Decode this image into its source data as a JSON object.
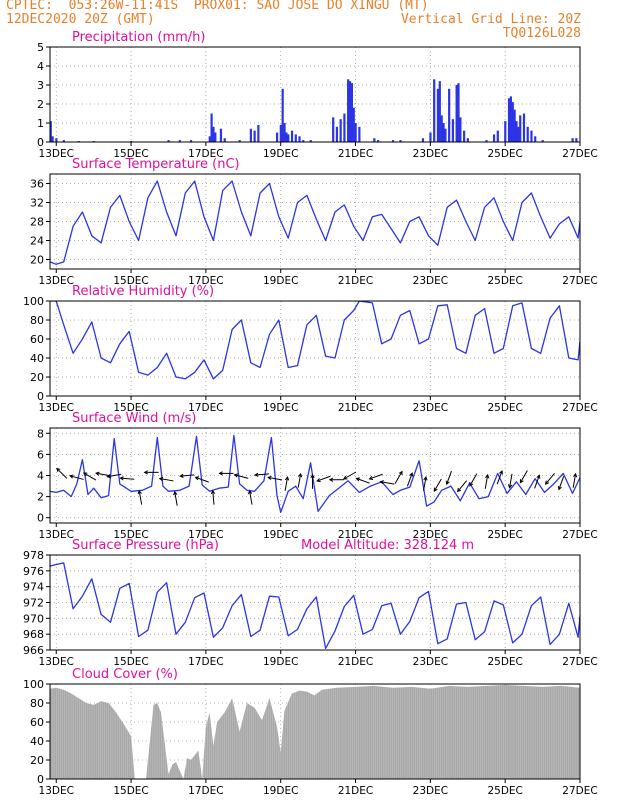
{
  "header": {
    "line1": "CPTEC:  053:26W-11:41S  PROX01: SAO JOSE DO XINGU (MT)",
    "date": "12DEC2020 20Z (GMT)",
    "grid_note": "Vertical Grid Line: 20Z",
    "code": "TQ0126L028"
  },
  "colors": {
    "header": "#e8802a",
    "panel_title": "#e0109a",
    "line": "#2b35e6",
    "bar": "#2b35e6",
    "cloud": "#a8a8a8",
    "grid": "#9a9a9a"
  },
  "x_ticks": [
    "13DEC",
    "15DEC",
    "17DEC",
    "19DEC",
    "21DEC",
    "23DEC",
    "25DEC",
    "27DEC"
  ],
  "chart_data": [
    {
      "type": "bar",
      "title": "Precipitation (mm/h)",
      "yticks": [
        "0",
        "1",
        "2",
        "3",
        "4",
        "5"
      ],
      "ylim": [
        0,
        5
      ],
      "grid": true,
      "x_range_days": [
        12.833,
        27.0
      ],
      "x": [
        12.85,
        12.9,
        13.0,
        13.2,
        13.6,
        14.0,
        15.0,
        16.0,
        16.3,
        16.6,
        17.1,
        17.15,
        17.2,
        17.25,
        17.4,
        17.5,
        17.9,
        18.2,
        18.3,
        18.4,
        18.9,
        19.0,
        19.05,
        19.1,
        19.15,
        19.2,
        19.3,
        19.4,
        19.5,
        19.6,
        19.8,
        20.4,
        20.5,
        20.6,
        20.7,
        20.8,
        20.85,
        20.9,
        20.95,
        21.0,
        21.1,
        21.5,
        21.6,
        22.0,
        22.2,
        22.8,
        23.0,
        23.1,
        23.2,
        23.25,
        23.3,
        23.35,
        23.4,
        23.5,
        23.6,
        23.7,
        23.75,
        23.8,
        23.9,
        24.0,
        24.5,
        24.7,
        24.8,
        25.0,
        25.1,
        25.15,
        25.2,
        25.25,
        25.3,
        25.35,
        25.4,
        25.5,
        25.6,
        25.7,
        25.8,
        26.0,
        26.8,
        26.9
      ],
      "values": [
        1.1,
        0.3,
        0.2,
        0.1,
        0.05,
        0.05,
        0.05,
        0.1,
        0.1,
        0.1,
        0.3,
        1.5,
        0.8,
        0.5,
        0.7,
        0.2,
        0.1,
        0.7,
        0.6,
        0.9,
        0.5,
        0.9,
        2.8,
        1.0,
        0.5,
        0.4,
        0.6,
        0.4,
        0.3,
        0.1,
        0.1,
        1.3,
        0.8,
        1.2,
        1.5,
        3.3,
        3.2,
        3.1,
        1.8,
        1.0,
        0.8,
        0.2,
        0.1,
        0.1,
        0.1,
        0.2,
        0.5,
        3.3,
        2.8,
        3.2,
        1.4,
        1.0,
        0.7,
        2.8,
        1.2,
        3.0,
        3.1,
        1.3,
        0.6,
        0.2,
        0.1,
        0.4,
        0.6,
        1.1,
        2.3,
        2.4,
        2.1,
        1.7,
        1.1,
        0.8,
        1.4,
        1.5,
        0.8,
        0.6,
        0.3,
        0.1,
        0.2,
        0.2
      ]
    },
    {
      "type": "line",
      "title": "Surface Temperature (nC)",
      "yticks": [
        "20",
        "24",
        "28",
        "32",
        "36"
      ],
      "ylim": [
        18,
        38
      ],
      "grid": true,
      "x_range_days": [
        12.833,
        27.0
      ],
      "x": [
        12.833,
        13.0,
        13.2,
        13.45,
        13.7,
        13.95,
        14.2,
        14.45,
        14.7,
        14.95,
        15.2,
        15.45,
        15.7,
        15.95,
        16.2,
        16.45,
        16.7,
        16.95,
        17.2,
        17.45,
        17.7,
        17.95,
        18.2,
        18.45,
        18.7,
        18.95,
        19.2,
        19.45,
        19.7,
        19.95,
        20.2,
        20.45,
        20.7,
        20.95,
        21.2,
        21.45,
        21.7,
        21.95,
        22.2,
        22.45,
        22.7,
        22.95,
        23.2,
        23.45,
        23.7,
        23.95,
        24.2,
        24.45,
        24.7,
        24.95,
        25.2,
        25.45,
        25.7,
        25.95,
        26.2,
        26.45,
        26.7,
        26.95,
        27.0
      ],
      "values": [
        19.5,
        19.0,
        19.5,
        27.0,
        30.0,
        25.0,
        23.5,
        31.0,
        33.5,
        28.0,
        24.0,
        33.0,
        36.5,
        30.0,
        25.0,
        34.0,
        36.5,
        29.0,
        24.0,
        34.5,
        36.5,
        30.0,
        25.0,
        34.0,
        36.0,
        29.0,
        24.5,
        32.0,
        33.5,
        28.5,
        24.0,
        30.0,
        31.5,
        27.0,
        24.0,
        29.0,
        29.5,
        26.5,
        23.5,
        28.0,
        29.0,
        25.0,
        23.0,
        31.0,
        32.5,
        28.0,
        24.0,
        31.0,
        33.0,
        28.0,
        24.0,
        32.0,
        34.0,
        29.0,
        24.5,
        27.5,
        29.0,
        24.5,
        28.0
      ]
    },
    {
      "type": "line",
      "title": "Relative Humidity (%)",
      "yticks": [
        "0",
        "20",
        "40",
        "60",
        "80",
        "100"
      ],
      "ylim": [
        0,
        100
      ],
      "grid": true,
      "x_range_days": [
        12.833,
        27.0
      ],
      "x": [
        12.833,
        13.0,
        13.2,
        13.45,
        13.7,
        13.95,
        14.2,
        14.45,
        14.7,
        14.95,
        15.2,
        15.45,
        15.7,
        15.95,
        16.2,
        16.45,
        16.7,
        16.95,
        17.2,
        17.45,
        17.7,
        17.95,
        18.2,
        18.45,
        18.7,
        18.95,
        19.2,
        19.45,
        19.7,
        19.95,
        20.2,
        20.45,
        20.7,
        20.95,
        21.1,
        21.45,
        21.7,
        21.95,
        22.2,
        22.45,
        22.7,
        22.95,
        23.2,
        23.45,
        23.7,
        23.95,
        24.2,
        24.45,
        24.7,
        24.95,
        25.2,
        25.45,
        25.7,
        25.95,
        26.2,
        26.45,
        26.7,
        26.95,
        27.0
      ],
      "values": [
        100,
        100,
        75,
        45,
        60,
        78,
        40,
        35,
        55,
        68,
        25,
        22,
        30,
        45,
        20,
        18,
        25,
        38,
        18,
        27,
        70,
        80,
        35,
        30,
        65,
        80,
        30,
        32,
        75,
        85,
        42,
        40,
        80,
        90,
        100,
        98,
        55,
        60,
        85,
        90,
        55,
        60,
        95,
        96,
        50,
        45,
        85,
        92,
        45,
        50,
        95,
        98,
        50,
        45,
        82,
        95,
        40,
        38,
        58
      ]
    },
    {
      "type": "line",
      "title": "Surface Wind (m/s)",
      "yticks": [
        "0",
        "2",
        "4",
        "6",
        "8"
      ],
      "ylim": [
        -0.5,
        8.5
      ],
      "grid": true,
      "x_range_days": [
        12.833,
        27.0
      ],
      "x": [
        12.833,
        13.0,
        13.2,
        13.4,
        13.55,
        13.7,
        13.85,
        14.0,
        14.2,
        14.4,
        14.55,
        14.7,
        15.0,
        15.3,
        15.55,
        15.7,
        15.85,
        16.0,
        16.3,
        16.55,
        16.75,
        16.9,
        17.1,
        17.35,
        17.6,
        17.75,
        17.9,
        18.1,
        18.3,
        18.55,
        18.75,
        18.9,
        19.0,
        19.2,
        19.4,
        19.6,
        19.8,
        20.0,
        20.3,
        20.55,
        20.8,
        21.1,
        21.4,
        21.7,
        22.0,
        22.2,
        22.45,
        22.7,
        22.9,
        23.1,
        23.3,
        23.55,
        23.8,
        24.05,
        24.3,
        24.55,
        24.8,
        25.05,
        25.3,
        25.55,
        25.8,
        26.05,
        26.3,
        26.55,
        26.8,
        27.0
      ],
      "values": [
        2.5,
        2.4,
        2.6,
        2.0,
        3.2,
        5.5,
        2.2,
        2.8,
        1.9,
        2.1,
        7.5,
        3.2,
        2.5,
        2.6,
        3.0,
        7.6,
        3.0,
        2.5,
        2.6,
        3.0,
        7.7,
        3.1,
        2.5,
        2.8,
        2.9,
        7.8,
        3.2,
        2.6,
        2.5,
        3.5,
        7.6,
        2.1,
        0.5,
        2.5,
        3.0,
        1.8,
        5.2,
        0.6,
        2.1,
        2.8,
        3.5,
        2.4,
        3.0,
        3.4,
        2.2,
        2.6,
        2.9,
        5.4,
        1.1,
        1.5,
        2.6,
        3.0,
        1.6,
        3.3,
        1.8,
        2.0,
        4.2,
        2.3,
        3.4,
        2.2,
        3.7,
        2.4,
        3.2,
        4.2,
        2.3,
        3.8
      ],
      "arrows_x": [
        13.15,
        13.55,
        13.9,
        14.25,
        14.55,
        14.9,
        15.25,
        15.55,
        15.95,
        16.2,
        16.5,
        16.9,
        17.2,
        17.55,
        17.95,
        18.2,
        18.5,
        18.85,
        19.15,
        19.5,
        19.85,
        20.15,
        20.5,
        20.85,
        21.2,
        21.55,
        21.85,
        22.15,
        22.45,
        22.85,
        23.2,
        23.5,
        23.85,
        24.15,
        24.5,
        24.85,
        25.15,
        25.5,
        25.85,
        26.2,
        26.5,
        26.85
      ],
      "arrows_y": [
        4.2,
        3.8,
        3.9,
        4.1,
        4.0,
        3.7,
        1.9,
        4.3,
        3.6,
        1.8,
        4.0,
        3.6,
        1.9,
        4.2,
        3.9,
        1.9,
        4.1,
        3.7,
        3.2,
        3.5,
        3.4,
        3.7,
        3.6,
        4.0,
        3.5,
        3.9,
        3.3,
        3.8,
        3.6,
        3.2,
        3.1,
        3.8,
        3.0,
        3.6,
        3.4,
        3.8,
        3.5,
        3.9,
        3.4,
        3.7,
        3.3,
        3.5
      ],
      "arrows_dir_deg": [
        135,
        165,
        150,
        170,
        190,
        175,
        100,
        180,
        170,
        100,
        185,
        160,
        95,
        180,
        165,
        100,
        185,
        170,
        80,
        80,
        90,
        200,
        180,
        210,
        160,
        200,
        170,
        60,
        70,
        80,
        240,
        250,
        230,
        240,
        80,
        70,
        260,
        240,
        70,
        230,
        250,
        80
      ]
    },
    {
      "type": "line",
      "title": "Surface Pressure (hPa)",
      "annotation": "Model Altitude: 328.124 m",
      "yticks": [
        "966",
        "968",
        "970",
        "972",
        "974",
        "976",
        "978"
      ],
      "ylim": [
        966,
        978
      ],
      "grid": true,
      "x_range_days": [
        12.833,
        27.0
      ],
      "x": [
        12.833,
        13.0,
        13.2,
        13.45,
        13.7,
        13.95,
        14.2,
        14.45,
        14.7,
        14.95,
        15.2,
        15.45,
        15.7,
        15.95,
        16.2,
        16.45,
        16.7,
        16.95,
        17.2,
        17.45,
        17.7,
        17.95,
        18.2,
        18.45,
        18.7,
        18.95,
        19.2,
        19.45,
        19.7,
        19.95,
        20.2,
        20.45,
        20.7,
        20.95,
        21.2,
        21.45,
        21.7,
        21.95,
        22.2,
        22.45,
        22.7,
        22.95,
        23.2,
        23.45,
        23.7,
        23.95,
        24.2,
        24.45,
        24.7,
        24.95,
        25.2,
        25.45,
        25.7,
        25.95,
        26.2,
        26.45,
        26.7,
        26.95,
        27.0
      ],
      "values": [
        976.6,
        976.8,
        977.0,
        971.2,
        972.8,
        975.0,
        970.5,
        969.5,
        973.8,
        974.4,
        967.7,
        968.5,
        973.3,
        974.5,
        968.0,
        969.5,
        972.6,
        973.2,
        967.6,
        968.8,
        971.6,
        973.0,
        967.7,
        968.5,
        972.8,
        972.7,
        967.8,
        968.6,
        971.2,
        972.7,
        966.2,
        968.4,
        971.5,
        972.9,
        968.0,
        968.6,
        971.6,
        971.9,
        968.0,
        969.6,
        972.6,
        973.4,
        966.8,
        967.4,
        971.8,
        972.0,
        967.3,
        968.3,
        972.2,
        971.7,
        966.9,
        968.0,
        971.6,
        972.7,
        966.7,
        968.0,
        971.9,
        967.6,
        970.4
      ]
    },
    {
      "type": "area",
      "title": "Cloud Cover (%)",
      "yticks": [
        "0",
        "20",
        "40",
        "60",
        "80",
        "100"
      ],
      "ylim": [
        0,
        100
      ],
      "grid": true,
      "x_range_days": [
        12.833,
        27.0
      ],
      "x": [
        12.833,
        13.0,
        13.2,
        13.4,
        13.6,
        13.8,
        14.0,
        14.2,
        14.4,
        14.6,
        14.8,
        15.0,
        15.1,
        15.2,
        15.4,
        15.6,
        15.7,
        15.8,
        16.0,
        16.1,
        16.2,
        16.4,
        16.5,
        16.6,
        16.8,
        16.9,
        17.0,
        17.1,
        17.2,
        17.3,
        17.5,
        17.7,
        17.9,
        18.1,
        18.3,
        18.5,
        18.7,
        18.9,
        19.0,
        19.1,
        19.3,
        19.5,
        19.7,
        19.9,
        20.1,
        20.5,
        21.0,
        21.5,
        22.0,
        22.5,
        23.0,
        23.5,
        24.0,
        24.5,
        25.0,
        25.5,
        26.0,
        26.5,
        27.0
      ],
      "values": [
        95,
        96,
        94,
        90,
        85,
        80,
        78,
        82,
        80,
        70,
        58,
        45,
        0,
        0,
        0,
        78,
        80,
        70,
        5,
        15,
        18,
        0,
        22,
        20,
        30,
        0,
        55,
        70,
        35,
        60,
        70,
        85,
        50,
        80,
        75,
        62,
        85,
        55,
        28,
        72,
        90,
        93,
        92,
        88,
        94,
        96,
        97,
        98,
        96,
        97,
        95,
        98,
        97,
        98,
        99,
        98,
        97,
        98,
        96
      ]
    }
  ]
}
